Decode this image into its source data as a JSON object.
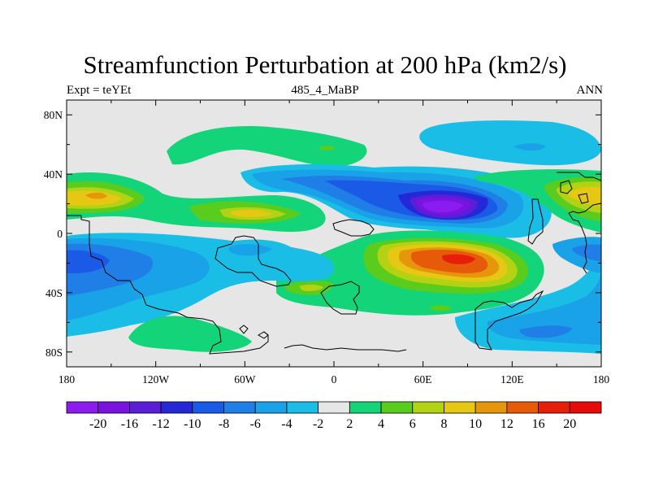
{
  "title": "Streamfunction Perturbation at 200 hPa (km2/s)",
  "left_string": "Expt = teYEt",
  "center_string": "485_4_MaBP",
  "right_string": "ANN",
  "map": {
    "projection": "cylindrical-equidistant",
    "lon_range": [
      -180,
      180
    ],
    "lat_range": [
      -90,
      90
    ],
    "background_color": "#e6e6e6",
    "coastlines": true,
    "y_ticks": [
      {
        "lat": 80,
        "label": "80N"
      },
      {
        "lat": 40,
        "label": "40N"
      },
      {
        "lat": 0,
        "label": "0"
      },
      {
        "lat": -40,
        "label": "40S"
      },
      {
        "lat": -80,
        "label": "80S"
      }
    ],
    "x_ticks": [
      {
        "lon": -180,
        "label": "180"
      },
      {
        "lon": -120,
        "label": "120W"
      },
      {
        "lon": -60,
        "label": "60W"
      },
      {
        "lon": 0,
        "label": "0"
      },
      {
        "lon": 60,
        "label": "60E"
      },
      {
        "lon": 120,
        "label": "120E"
      },
      {
        "lon": 180,
        "label": "180"
      }
    ]
  },
  "colorbar": {
    "levels": [
      "-20",
      "-16",
      "-12",
      "-10",
      "-8",
      "-6",
      "-4",
      "-2",
      "2",
      "4",
      "6",
      "8",
      "10",
      "12",
      "16",
      "20"
    ],
    "colors": [
      "#8a1cf0",
      "#7a12e0",
      "#5a1ed6",
      "#2428d6",
      "#1a5ae6",
      "#1f7fe6",
      "#1aa2e8",
      "#19bde6",
      "#e6e6e6",
      "#14d47a",
      "#5acc1e",
      "#b4d214",
      "#e6c814",
      "#e6960a",
      "#e65a0a",
      "#e61e0a",
      "#e60a0a"
    ]
  },
  "field": [
    {
      "lon": -160,
      "lat": 25,
      "value": 10,
      "color": "#e6c814"
    },
    {
      "lon": -70,
      "lat": 12,
      "value": 8,
      "color": "#b4d214"
    },
    {
      "lon": -5,
      "lat": 55,
      "value": 4,
      "color": "#14d47a"
    },
    {
      "lon": 80,
      "lat": 15,
      "value": -20,
      "color": "#8a1cf0"
    },
    {
      "lon": 40,
      "lat": 28,
      "value": -8,
      "color": "#1a5ae6"
    },
    {
      "lon": 90,
      "lat": 58,
      "value": -4,
      "color": "#1aa2e8"
    },
    {
      "lon": 170,
      "lat": 25,
      "value": 8,
      "color": "#b4d214"
    },
    {
      "lon": 85,
      "lat": -17,
      "value": 16,
      "color": "#e65a0a"
    },
    {
      "lon": 40,
      "lat": -40,
      "value": 6,
      "color": "#5acc1e"
    },
    {
      "lon": -170,
      "lat": -20,
      "value": -8,
      "color": "#1a5ae6"
    },
    {
      "lon": -50,
      "lat": -20,
      "value": -4,
      "color": "#1aa2e8"
    },
    {
      "lon": -120,
      "lat": -65,
      "value": 4,
      "color": "#14d47a"
    },
    {
      "lon": 130,
      "lat": -70,
      "value": -6,
      "color": "#1f7fe6"
    },
    {
      "lon": 175,
      "lat": -20,
      "value": -6,
      "color": "#1f7fe6"
    }
  ]
}
